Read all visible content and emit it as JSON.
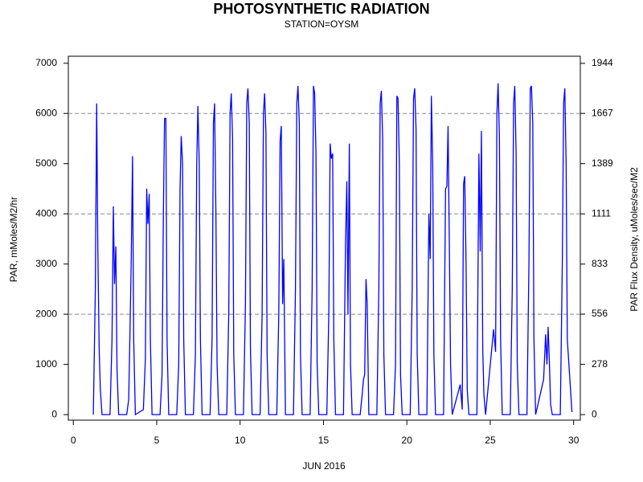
{
  "chart_data": {
    "type": "line",
    "title": "PHOTOSYNTHETIC RADIATION",
    "subtitle": "STATION=OYSM",
    "xlabel": "JUN 2016",
    "ylabel": "PAR, mMoles/M2/hr",
    "y2label": "PAR Flux Density, uMoles/sec/M2",
    "xlim": [
      -0.3,
      30.4
    ],
    "xticks": [
      0,
      5,
      10,
      15,
      20,
      25,
      30
    ],
    "ylim": [
      -110,
      7140
    ],
    "yticks": [
      0,
      1000,
      2000,
      3000,
      4000,
      5000,
      6000,
      7000
    ],
    "y2lim": [
      -30.6,
      1983.3
    ],
    "y2ticks": [
      0,
      278,
      556,
      833,
      1111,
      1389,
      1667,
      1944
    ],
    "grid_values": [
      2000,
      4000,
      6000
    ],
    "x": [
      1.2,
      1.32,
      1.4,
      1.47,
      1.55,
      1.62,
      1.72,
      2.2,
      2.32,
      2.4,
      2.47,
      2.55,
      2.62,
      2.72,
      3.2,
      3.32,
      3.4,
      3.47,
      3.55,
      3.62,
      3.72,
      4.2,
      4.32,
      4.4,
      4.47,
      4.55,
      4.62,
      4.72,
      5.2,
      5.32,
      5.4,
      5.47,
      5.55,
      5.62,
      5.72,
      6.2,
      6.32,
      6.4,
      6.47,
      6.55,
      6.62,
      6.72,
      7.2,
      7.32,
      7.4,
      7.47,
      7.55,
      7.62,
      7.72,
      8.2,
      8.32,
      8.4,
      8.47,
      8.55,
      8.62,
      8.72,
      9.2,
      9.32,
      9.4,
      9.47,
      9.55,
      9.62,
      9.72,
      10.2,
      10.32,
      10.4,
      10.47,
      10.55,
      10.62,
      10.72,
      11.2,
      11.32,
      11.4,
      11.47,
      11.55,
      11.62,
      11.72,
      12.2,
      12.32,
      12.4,
      12.47,
      12.55,
      12.62,
      12.72,
      13.2,
      13.32,
      13.4,
      13.47,
      13.55,
      13.62,
      13.72,
      14.2,
      14.32,
      14.4,
      14.47,
      14.55,
      14.62,
      14.72,
      15.2,
      15.32,
      15.4,
      15.47,
      15.55,
      15.62,
      15.72,
      16.2,
      16.32,
      16.4,
      16.47,
      16.55,
      16.62,
      16.72,
      17.2,
      17.32,
      17.4,
      17.47,
      17.55,
      17.62,
      17.72,
      18.2,
      18.32,
      18.4,
      18.47,
      18.55,
      18.62,
      18.72,
      19.2,
      19.32,
      19.4,
      19.47,
      19.55,
      19.62,
      19.72,
      20.2,
      20.32,
      20.4,
      20.47,
      20.55,
      20.62,
      20.72,
      21.2,
      21.32,
      21.4,
      21.47,
      21.55,
      21.62,
      21.72,
      22.2,
      22.32,
      22.4,
      22.47,
      22.55,
      22.62,
      22.72,
      23.2,
      23.32,
      23.4,
      23.47,
      23.55,
      23.62,
      23.72,
      24.2,
      24.32,
      24.4,
      24.47,
      24.55,
      24.62,
      24.72,
      25.2,
      25.32,
      25.4,
      25.47,
      25.55,
      25.62,
      25.72,
      26.2,
      26.32,
      26.4,
      26.47,
      26.55,
      26.62,
      26.72,
      27.2,
      27.32,
      27.4,
      27.47,
      27.55,
      27.62,
      27.72,
      28.2,
      28.32,
      28.4,
      28.47,
      28.55,
      28.62,
      28.72,
      29.2,
      29.32,
      29.4,
      29.47,
      29.55,
      29.62,
      29.9
    ],
    "series": [
      {
        "color": "#0000ff",
        "values": [
          0,
          2500,
          6200,
          3300,
          1300,
          500,
          0,
          0,
          1500,
          4150,
          2600,
          3350,
          900,
          0,
          0,
          300,
          1700,
          3000,
          5150,
          1500,
          0,
          100,
          1100,
          4500,
          3800,
          4400,
          1500,
          0,
          0,
          800,
          4000,
          5900,
          5900,
          1500,
          0,
          0,
          1000,
          4500,
          5550,
          5000,
          1500,
          0,
          0,
          1200,
          5000,
          6150,
          5000,
          1500,
          0,
          0,
          1500,
          5800,
          6200,
          4000,
          1000,
          0,
          0,
          2000,
          6000,
          6400,
          5500,
          1200,
          0,
          0,
          2200,
          6200,
          6500,
          5800,
          1300,
          0,
          0,
          2000,
          6000,
          6400,
          5600,
          1200,
          0,
          0,
          2000,
          5450,
          5750,
          2200,
          3100,
          0,
          0,
          2500,
          6200,
          6550,
          5800,
          1200,
          0,
          0,
          2500,
          6550,
          6400,
          5200,
          1000,
          0,
          0,
          2000,
          5400,
          5100,
          5200,
          1500,
          0,
          0,
          3400,
          4650,
          2000,
          5400,
          1000,
          0,
          0,
          400,
          700,
          800,
          2700,
          2200,
          0,
          0,
          2500,
          6200,
          6450,
          5500,
          1200,
          0,
          0,
          1000,
          6350,
          6300,
          5000,
          800,
          0,
          0,
          2500,
          6300,
          6500,
          5700,
          1200,
          0,
          0,
          4000,
          3100,
          6350,
          5000,
          1200,
          0,
          0,
          4500,
          4550,
          5750,
          3300,
          1000,
          0,
          600,
          100,
          4600,
          4750,
          3000,
          500,
          0,
          0,
          5200,
          3250,
          5650,
          1300,
          400,
          0,
          1700,
          1250,
          6000,
          6600,
          5500,
          1500,
          0,
          0,
          2500,
          6200,
          6550,
          5200,
          1000,
          0,
          0,
          3000,
          6500,
          6550,
          5800,
          1500,
          0,
          700,
          1600,
          1000,
          1750,
          1000,
          200,
          0,
          0,
          3000,
          6200,
          6500,
          5000,
          1500,
          50
        ]
      }
    ]
  }
}
